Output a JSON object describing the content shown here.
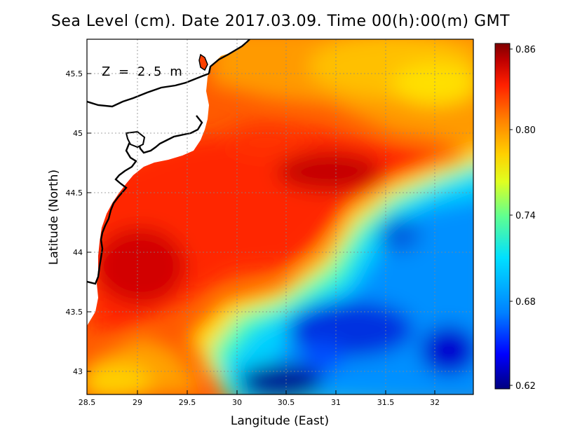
{
  "title": "Sea Level (cm). Date 2017.03.09. Time 00(h):00(m) GMT",
  "depth_label": "Z = 2.5 m",
  "x_axis": {
    "label": "Langitude (East)",
    "range": [
      28.5,
      32.4
    ],
    "ticks": [
      "28.5",
      "29",
      "29.5",
      "30",
      "30.5",
      "31",
      "31.5",
      "32"
    ]
  },
  "y_axis": {
    "label": "Latitude (North)",
    "range": [
      42.8,
      45.8
    ],
    "ticks": [
      "43",
      "43.5",
      "44",
      "44.5",
      "45",
      "45.5"
    ]
  },
  "colorbar": {
    "range": [
      0.62,
      0.86
    ],
    "labels": [
      "0.86",
      "0.80",
      "0.74",
      "0.68",
      "0.62"
    ],
    "colors": [
      "#00007f",
      "#0000ff",
      "#0080ff",
      "#00e0ff",
      "#60ff90",
      "#e0ff20",
      "#ffd000",
      "#ff8000",
      "#ff2000",
      "#c00000",
      "#7f0000"
    ]
  },
  "land_color": "#ffffff",
  "coast_color": "#000000",
  "chart_data": {
    "type": "heatmap",
    "title": "Sea Level (cm). Date 2017.03.09. Time 00(h):00(m) GMT",
    "xlabel": "Langitude (East)",
    "ylabel": "Latitude (North)",
    "xlim": [
      28.5,
      32.4
    ],
    "ylim": [
      42.8,
      45.8
    ],
    "value_range": [
      0.62,
      0.86
    ],
    "features": [
      {
        "lon": 29.0,
        "lat": 43.85,
        "value": 0.86
      },
      {
        "lon": 30.8,
        "lat": 44.75,
        "value": 0.85
      },
      {
        "lon": 30.2,
        "lat": 45.05,
        "value": 0.83
      },
      {
        "lon": 31.7,
        "lat": 44.2,
        "value": 0.69
      },
      {
        "lon": 30.4,
        "lat": 42.9,
        "value": 0.63
      },
      {
        "lon": 32.1,
        "lat": 43.1,
        "value": 0.64
      },
      {
        "lon": 31.2,
        "lat": 45.6,
        "value": 0.79
      },
      {
        "lon": 32.2,
        "lat": 45.5,
        "value": 0.77
      },
      {
        "lon": 28.8,
        "lat": 42.9,
        "value": 0.78
      }
    ]
  }
}
